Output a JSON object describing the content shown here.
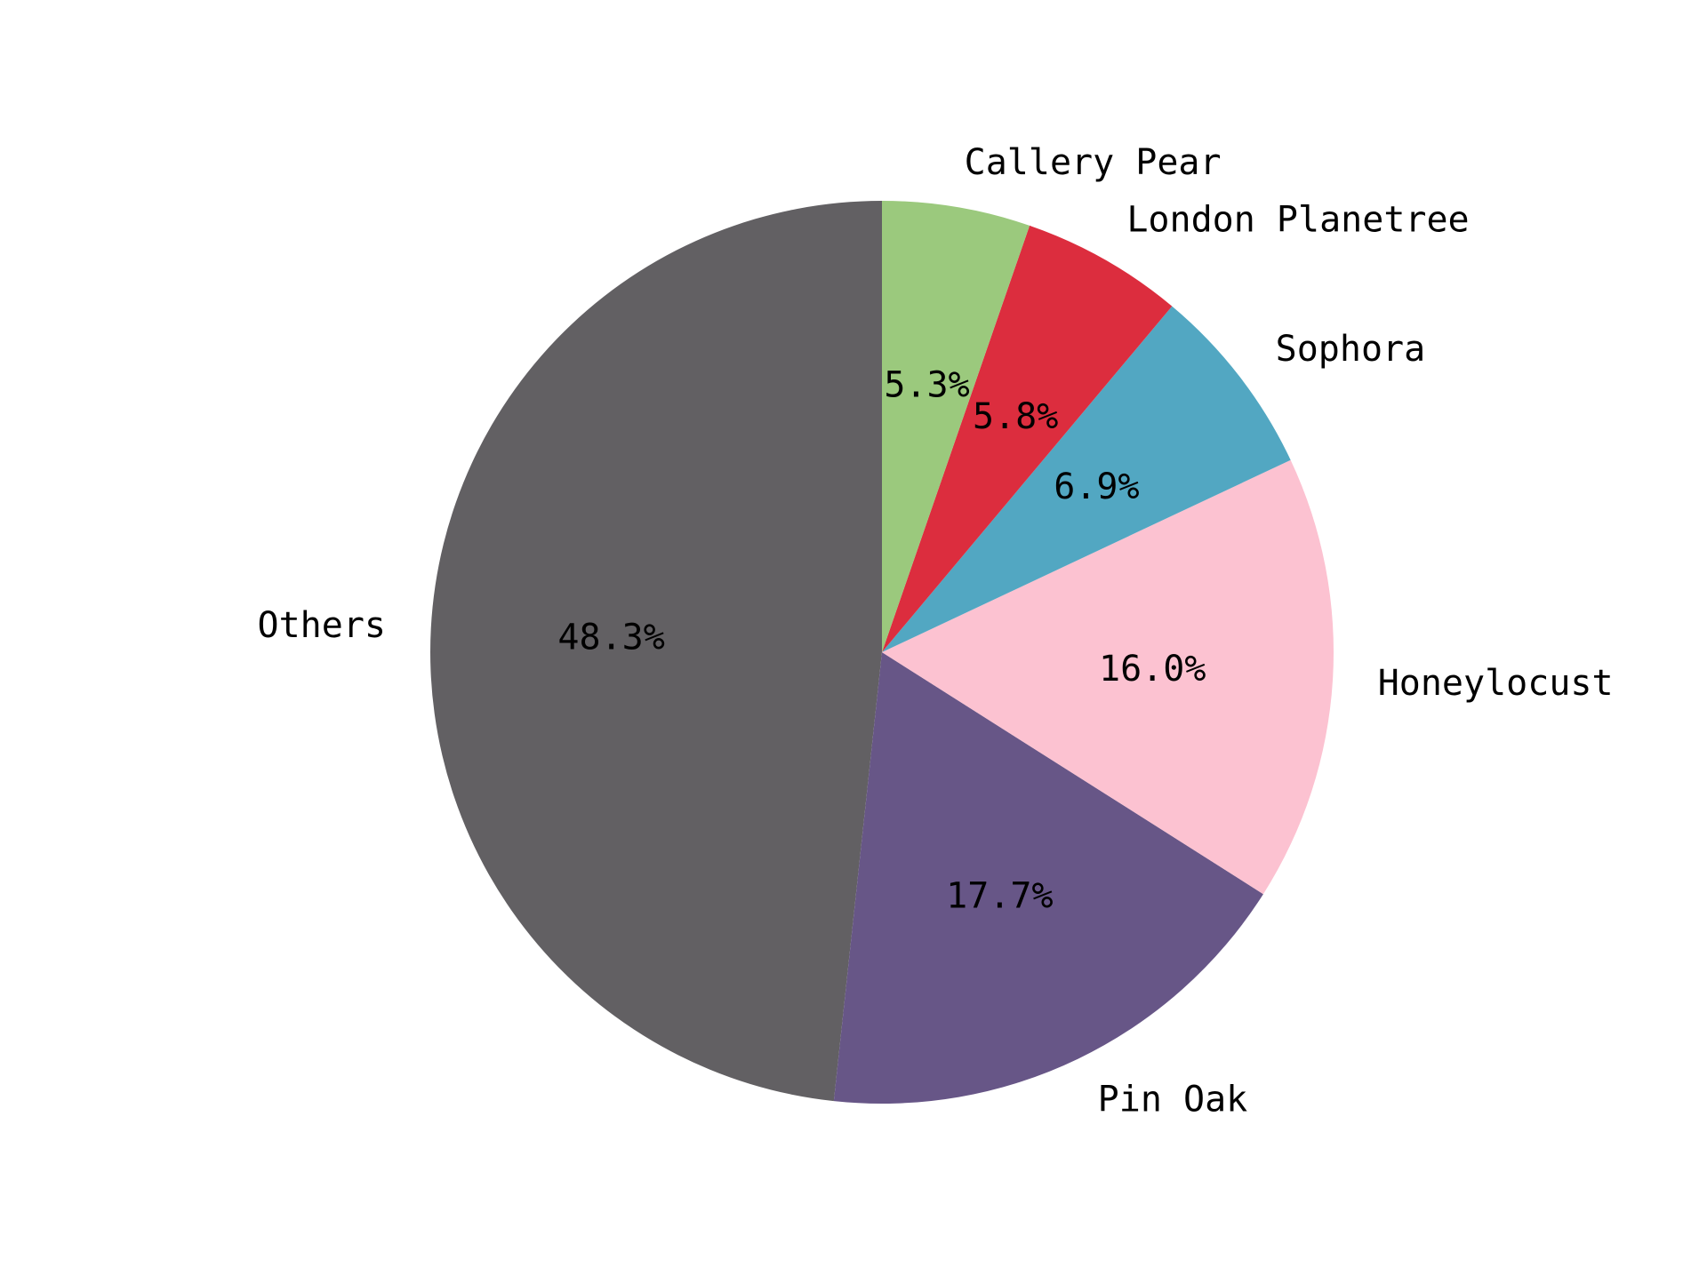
{
  "chart_data": {
    "type": "pie",
    "slices": [
      {
        "label": "Others",
        "value": 48.3,
        "pct_label": "48.3%",
        "color": "#626063"
      },
      {
        "label": "Pin Oak",
        "value": 17.7,
        "pct_label": "17.7%",
        "color": "#675687"
      },
      {
        "label": "Honeylocust",
        "value": 16.0,
        "pct_label": "16.0%",
        "color": "#fcc2d1"
      },
      {
        "label": "Sophora",
        "value": 6.9,
        "pct_label": "6.9%",
        "color": "#52a7c2"
      },
      {
        "label": "London Planetree",
        "value": 5.8,
        "pct_label": "5.8%",
        "color": "#dc2d3e"
      },
      {
        "label": "Callery Pear",
        "value": 5.3,
        "pct_label": "5.3%",
        "color": "#9bc97d"
      }
    ],
    "start_angle_deg": 90,
    "direction": "counterclockwise",
    "legend": "none"
  }
}
